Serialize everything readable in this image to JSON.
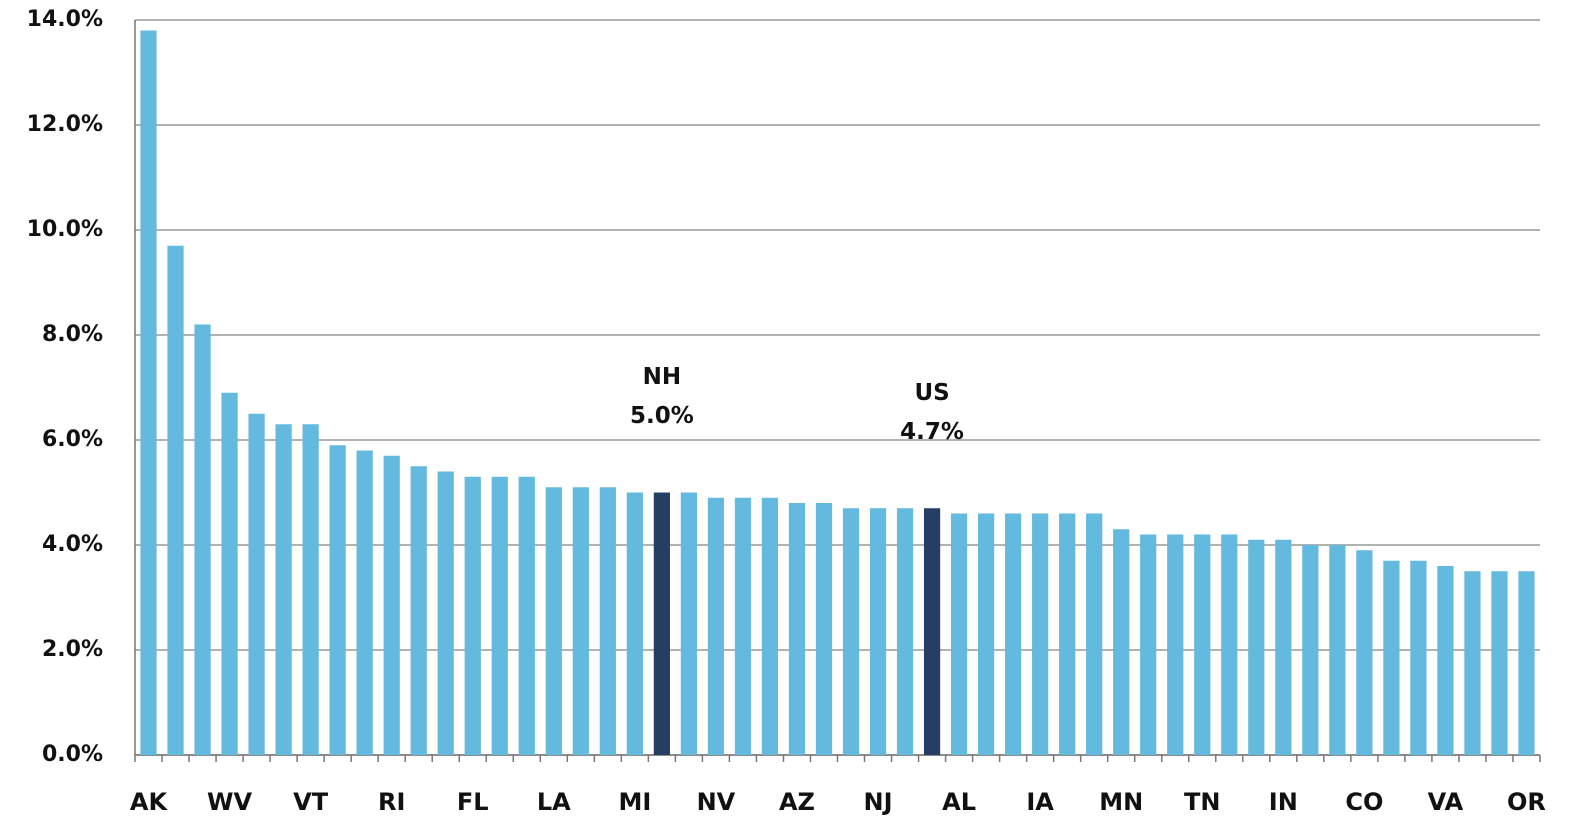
{
  "chart_data": {
    "type": "bar",
    "categories": [
      "AK",
      null,
      null,
      "WV",
      null,
      null,
      "VT",
      null,
      null,
      "RI",
      null,
      null,
      "FL",
      null,
      null,
      "LA",
      null,
      null,
      "MI",
      null,
      null,
      "NV",
      null,
      null,
      "AZ",
      null,
      null,
      "NJ",
      null,
      null,
      "AL",
      null,
      null,
      "IA",
      null,
      null,
      "MN",
      null,
      null,
      "TN",
      null,
      null,
      "IN",
      null,
      null,
      "CO",
      null,
      null,
      "VA",
      null,
      null,
      "OR"
    ],
    "values": [
      13.8,
      9.7,
      8.2,
      6.9,
      6.5,
      6.3,
      6.3,
      5.9,
      5.8,
      5.7,
      5.5,
      5.4,
      5.3,
      5.3,
      5.3,
      5.1,
      5.1,
      5.1,
      5.0,
      5.0,
      5.0,
      4.9,
      4.9,
      4.9,
      4.8,
      4.8,
      4.7,
      4.7,
      4.7,
      4.7,
      4.6,
      4.6,
      4.6,
      4.6,
      4.6,
      4.6,
      4.3,
      4.2,
      4.2,
      4.2,
      4.2,
      4.1,
      4.1,
      4.0,
      4.0,
      3.9,
      3.7,
      3.7,
      3.6,
      3.5,
      3.5,
      3.5
    ],
    "value_labels": [
      null,
      null,
      null,
      null,
      null,
      null,
      null,
      null,
      null,
      null,
      null,
      null,
      null,
      null,
      null,
      null,
      null,
      null,
      null,
      "5.0%",
      null,
      null,
      null,
      null,
      null,
      null,
      null,
      null,
      null,
      "4.7%",
      null,
      null,
      null,
      null,
      null,
      null,
      null,
      null,
      null,
      null,
      null,
      null,
      null,
      null,
      null,
      null,
      null,
      null,
      null,
      null,
      null,
      null
    ],
    "annotations": [
      "NH",
      "US"
    ],
    "color": "#63b9de",
    "highlight_color": "#243f63",
    "ylim": [
      0,
      14
    ],
    "yticks": [
      {
        "value": 0,
        "label": "0.0%"
      },
      {
        "value": 2,
        "label": "2.0%"
      },
      {
        "value": 4,
        "label": "4.0%"
      },
      {
        "value": 6,
        "label": "6.0%"
      },
      {
        "value": 8,
        "label": "8.0%"
      },
      {
        "value": 10,
        "label": "10.0%"
      },
      {
        "value": 12,
        "label": "12.0%"
      },
      {
        "value": 14,
        "label": "14.0%"
      }
    ],
    "grid": true
  }
}
